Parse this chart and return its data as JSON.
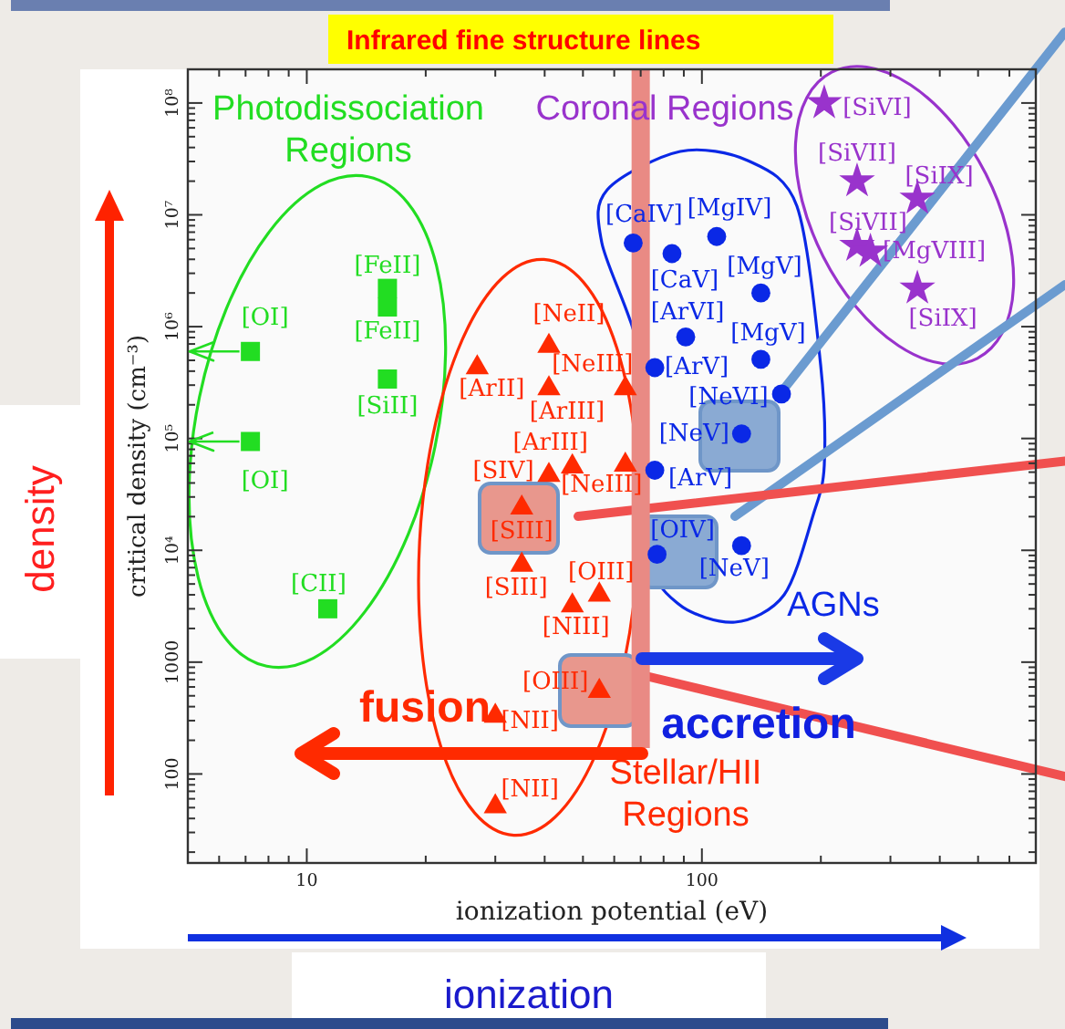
{
  "chart_data": {
    "type": "scatter",
    "title": "Infrared fine structure lines",
    "xlabel": "ionization potential (eV)",
    "ylabel": "critical density (cm⁻³)",
    "log": "xy",
    "xlim": [
      5,
      700
    ],
    "ylim": [
      16,
      200000000
    ],
    "xticks": [
      {
        "value": 6,
        "label": null
      },
      {
        "value": 7,
        "label": null
      },
      {
        "value": 8,
        "label": null
      },
      {
        "value": 9,
        "label": null
      },
      10,
      {
        "value": 20,
        "label": null
      },
      {
        "value": 30,
        "label": null
      },
      {
        "value": 40,
        "label": null
      },
      {
        "value": 50,
        "label": null
      },
      {
        "value": 60,
        "label": null
      },
      {
        "value": 70,
        "label": null
      },
      {
        "value": 80,
        "label": null
      },
      {
        "value": 90,
        "label": null
      },
      100,
      {
        "value": 200,
        "label": null
      },
      {
        "value": 300,
        "label": null
      },
      {
        "value": 400,
        "label": null
      },
      {
        "value": 500,
        "label": null
      },
      {
        "value": 600,
        "label": null
      }
    ],
    "yticks": [
      {
        "value": 20,
        "label": null
      },
      {
        "value": 30,
        "label": null
      },
      {
        "value": 40,
        "label": null
      },
      {
        "value": 50,
        "label": null
      },
      {
        "value": 60,
        "label": null
      },
      {
        "value": 70,
        "label": null
      },
      {
        "value": 80,
        "label": null
      },
      {
        "value": 90,
        "label": null
      },
      100,
      {
        "value": 200,
        "label": null
      },
      {
        "value": 300,
        "label": null
      },
      {
        "value": 400,
        "label": null
      },
      {
        "value": 500,
        "label": null
      },
      {
        "value": 600,
        "label": null
      },
      {
        "value": 700,
        "label": null
      },
      {
        "value": 800,
        "label": null
      },
      {
        "value": 900,
        "label": null
      },
      1000,
      {
        "value": 2000,
        "label": null
      },
      {
        "value": 3000,
        "label": null
      },
      {
        "value": 4000,
        "label": null
      },
      {
        "value": 5000,
        "label": null
      },
      {
        "value": 6000,
        "label": null
      },
      {
        "value": 7000,
        "label": null
      },
      {
        "value": 8000,
        "label": null
      },
      {
        "value": 9000,
        "label": null
      },
      {
        "value": 10000,
        "label": "10⁴"
      },
      {
        "value": 20000,
        "label": null
      },
      {
        "value": 30000,
        "label": null
      },
      {
        "value": 40000,
        "label": null
      },
      {
        "value": 50000,
        "label": null
      },
      {
        "value": 60000,
        "label": null
      },
      {
        "value": 70000,
        "label": null
      },
      {
        "value": 80000,
        "label": null
      },
      {
        "value": 90000,
        "label": null
      },
      {
        "value": 100000,
        "label": "10⁵"
      },
      {
        "value": 200000,
        "label": null
      },
      {
        "value": 300000,
        "label": null
      },
      {
        "value": 400000,
        "label": null
      },
      {
        "value": 500000,
        "label": null
      },
      {
        "value": 600000,
        "label": null
      },
      {
        "value": 700000,
        "label": null
      },
      {
        "value": 800000,
        "label": null
      },
      {
        "value": 900000,
        "label": null
      },
      {
        "value": 1000000,
        "label": "10⁶"
      },
      {
        "value": 2000000,
        "label": null
      },
      {
        "value": 3000000,
        "label": null
      },
      {
        "value": 4000000,
        "label": null
      },
      {
        "value": 5000000,
        "label": null
      },
      {
        "value": 6000000,
        "label": null
      },
      {
        "value": 7000000,
        "label": null
      },
      {
        "value": 8000000,
        "label": null
      },
      {
        "value": 9000000,
        "label": null
      },
      {
        "value": 10000000,
        "label": "10⁷"
      },
      {
        "value": 20000000,
        "label": null
      },
      {
        "value": 30000000,
        "label": null
      },
      {
        "value": 40000000,
        "label": null
      },
      {
        "value": 50000000,
        "label": null
      },
      {
        "value": 60000000,
        "label": null
      },
      {
        "value": 70000000,
        "label": null
      },
      {
        "value": 80000000,
        "label": null
      },
      {
        "value": 90000000,
        "label": null
      },
      {
        "value": 100000000,
        "label": "10⁸"
      }
    ],
    "series": [
      {
        "name": "Photodissociation Regions",
        "color": "#22dd22",
        "marker": "square",
        "x": [
          7.2,
          7.2,
          16,
          16,
          16,
          11.3
        ],
        "values": [
          600000,
          94000,
          2200000,
          1500000,
          340000,
          3000
        ]
      },
      {
        "name": "Stellar/HII Regions",
        "color": "#ff2a00",
        "marker": "triangle",
        "x": [
          41,
          27,
          41,
          64,
          41,
          47,
          64,
          35,
          35,
          47,
          55,
          55,
          30,
          30
        ],
        "values": [
          670000,
          430000,
          280000,
          280000,
          47000,
          56000,
          58000,
          24000,
          7400,
          3200,
          4000,
          550,
          330,
          51
        ]
      },
      {
        "name": "AGNs",
        "color": "#0a28e6",
        "marker": "circle",
        "x": [
          67,
          84,
          109,
          141,
          91,
          141,
          76,
          159,
          126,
          76,
          77,
          126
        ],
        "values": [
          5600000,
          4500000,
          6400000,
          2000000,
          810000,
          510000,
          430000,
          250000,
          110000,
          52000,
          9200,
          11000
        ]
      },
      {
        "name": "Coronal Regions",
        "color": "#9933cc",
        "marker": "star",
        "x": [
          204,
          247,
          351,
          247,
          267,
          351
        ],
        "values": [
          100000000,
          20000000,
          14000000,
          5300000,
          4700000,
          2200000
        ]
      }
    ],
    "ref_lines": [
      {
        "axis": "x",
        "value": 70,
        "color": "#e98a84"
      }
    ],
    "annotations": [
      "fusion",
      "accretion",
      "density",
      "ionization",
      {
        "text": "[OI]",
        "x": 7.2,
        "y": 600000
      },
      {
        "text": "[OI]",
        "x": 7.2,
        "y": 94000
      },
      {
        "text": "[FeII]",
        "x": 16,
        "y": 2200000
      },
      {
        "text": "[FeII]",
        "x": 16,
        "y": 1500000
      },
      {
        "text": "[SiII]",
        "x": 16,
        "y": 340000
      },
      {
        "text": "[CII]",
        "x": 11.3,
        "y": 3000
      },
      {
        "text": "[NeII]",
        "x": 41,
        "y": 670000
      },
      {
        "text": "[ArII]",
        "x": 27,
        "y": 430000
      },
      {
        "text": "[ArIII]",
        "x": 41,
        "y": 280000
      },
      {
        "text": "[NeIII]",
        "x": 64,
        "y": 280000
      },
      {
        "text": "[SIV]",
        "x": 41,
        "y": 47000
      },
      {
        "text": "[ArIII]",
        "x": 47,
        "y": 56000
      },
      {
        "text": "[NeIII]",
        "x": 64,
        "y": 58000
      },
      {
        "text": "[SIII]",
        "x": 35,
        "y": 24000
      },
      {
        "text": "[SIII]",
        "x": 35,
        "y": 7400
      },
      {
        "text": "[NIII]",
        "x": 47,
        "y": 3200
      },
      {
        "text": "[OIII]",
        "x": 55,
        "y": 4000
      },
      {
        "text": "[OIII]",
        "x": 55,
        "y": 550
      },
      {
        "text": "[NII]",
        "x": 30,
        "y": 330
      },
      {
        "text": "[NII]",
        "x": 30,
        "y": 51
      },
      {
        "text": "[CaIV]",
        "x": 67,
        "y": 5600000
      },
      {
        "text": "[CaV]",
        "x": 84,
        "y": 4500000
      },
      {
        "text": "[MgIV]",
        "x": 109,
        "y": 6400000
      },
      {
        "text": "[MgV]",
        "x": 141,
        "y": 2000000
      },
      {
        "text": "[ArVI]",
        "x": 91,
        "y": 810000
      },
      {
        "text": "[MgV]",
        "x": 141,
        "y": 510000
      },
      {
        "text": "[ArV]",
        "x": 76,
        "y": 430000
      },
      {
        "text": "[NeVI]",
        "x": 159,
        "y": 250000
      },
      {
        "text": "[NeV]",
        "x": 126,
        "y": 110000
      },
      {
        "text": "[ArV]",
        "x": 76,
        "y": 52000
      },
      {
        "text": "[OIV]",
        "x": 77,
        "y": 9200
      },
      {
        "text": "[NeV]",
        "x": 126,
        "y": 11000
      },
      {
        "text": "[SiVI]",
        "x": 204,
        "y": 100000000
      },
      {
        "text": "[SiVII]",
        "x": 247,
        "y": 20000000
      },
      {
        "text": "[SiIX]",
        "x": 351,
        "y": 14000000
      },
      {
        "text": "[SiVII]",
        "x": 247,
        "y": 5300000
      },
      {
        "text": "[MgVIII]",
        "x": 267,
        "y": 4700000
      },
      {
        "text": "[SiIX]",
        "x": 351,
        "y": 2200000
      }
    ]
  }
}
